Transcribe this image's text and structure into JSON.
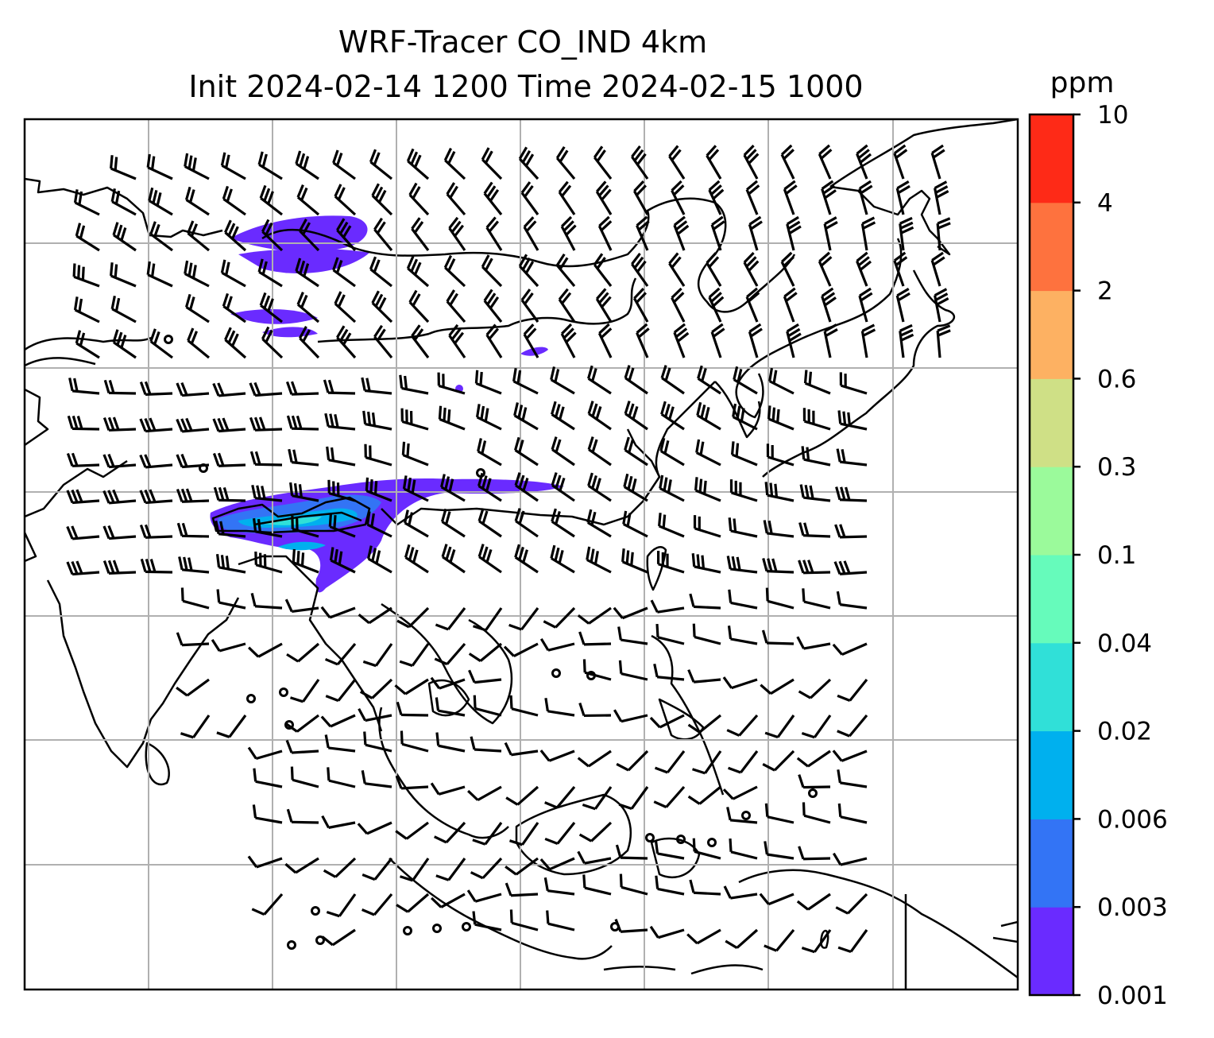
{
  "title": {
    "line1": "WRF-Tracer CO_IND 4km",
    "line2": "Init 2024-02-14 1200 Time 2024-02-15 1000"
  },
  "colorbar": {
    "unit": "ppm",
    "levels": [
      "0.001",
      "0.003",
      "0.006",
      "0.02",
      "0.04",
      "0.1",
      "0.3",
      "0.6",
      "2",
      "4",
      "10"
    ],
    "colors": [
      "#6a2bff",
      "#3374f5",
      "#00b0ee",
      "#30e0d8",
      "#66fbbb",
      "#9bfa9b",
      "#cfe086",
      "#fdb162",
      "#fe723e",
      "#fe2a17"
    ]
  },
  "map": {
    "gridlines": true,
    "features": [
      "coastlines",
      "wind-barbs",
      "tracer-plume"
    ]
  }
}
